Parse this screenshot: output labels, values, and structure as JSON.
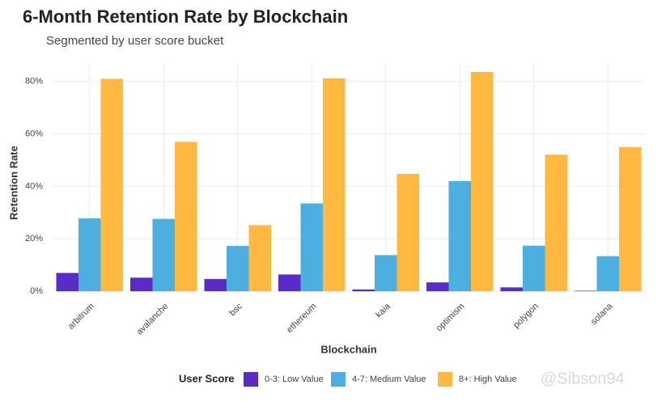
{
  "chart_data": {
    "type": "bar",
    "title": "6-Month Retention Rate by Blockchain",
    "subtitle": "Segmented by user score bucket",
    "x_label": "Blockchain",
    "y_label": "Retention Rate",
    "legend_title": "User Score",
    "watermark": "@Sibson94",
    "categories": [
      "arbitrum",
      "avalanche",
      "bsc",
      "ethereum",
      "kaia",
      "optimism",
      "polygon",
      "solana"
    ],
    "series": [
      {
        "name": "0-3: Low Value",
        "color": "#5b2bc8",
        "values": [
          7.0,
          5.2,
          4.7,
          6.4,
          0.7,
          3.4,
          1.5,
          0.2
        ]
      },
      {
        "name": "4-7: Medium Value",
        "color": "#4daee0",
        "values": [
          27.8,
          27.6,
          17.3,
          33.5,
          13.8,
          42.0,
          17.4,
          13.4
        ]
      },
      {
        "name": "8+: High Value",
        "color": "#ffb840",
        "values": [
          81.0,
          57.0,
          25.2,
          81.2,
          44.8,
          83.6,
          52.1,
          55.0
        ]
      }
    ],
    "ylim": [
      -1.5,
      87
    ],
    "yticks": [
      {
        "value": 0,
        "label": "0%"
      },
      {
        "value": 20,
        "label": "20%"
      },
      {
        "value": 40,
        "label": "40%"
      },
      {
        "value": 60,
        "label": "60%"
      },
      {
        "value": 80,
        "label": "80%"
      }
    ],
    "grid": true,
    "legend": "bottom"
  }
}
